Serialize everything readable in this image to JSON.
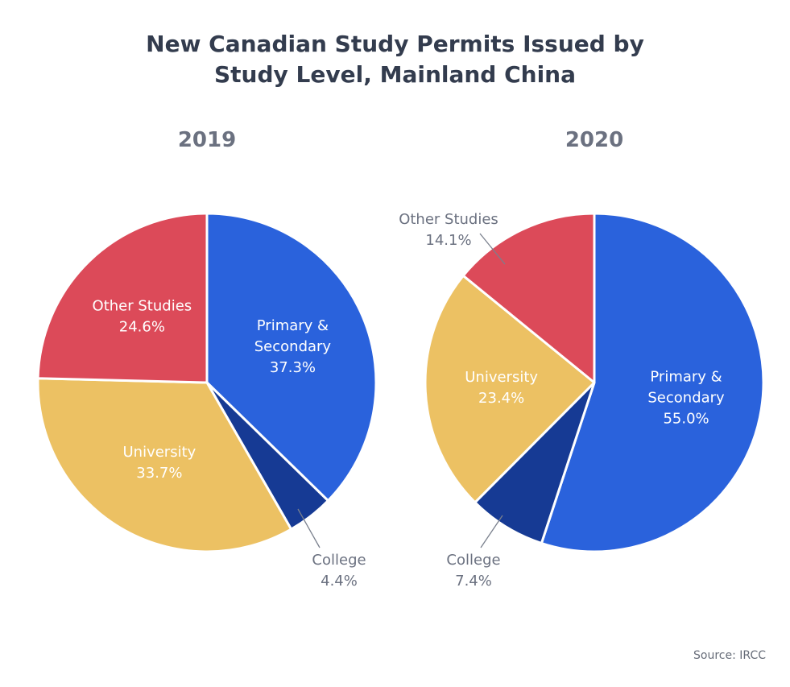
{
  "title_lines": [
    "New Canadian Study Permits Issued by",
    "Study Level, Mainland China"
  ],
  "source": "Source: IRCC",
  "colors": {
    "Primary & Secondary": "#2a62dc",
    "College": "#163a94",
    "University": "#ecc163",
    "Other Studies": "#dc4a59"
  },
  "chart_data": [
    {
      "type": "pie",
      "title": "2019",
      "slices": [
        {
          "label_lines": [
            "Primary &",
            "Secondary"
          ],
          "category": "Primary & Secondary",
          "value": 37.3,
          "value_text": "37.3%",
          "label_style": "inside"
        },
        {
          "label_lines": [
            "College"
          ],
          "category": "College",
          "value": 4.4,
          "value_text": "4.4%",
          "label_style": "callout"
        },
        {
          "label_lines": [
            "University"
          ],
          "category": "University",
          "value": 33.7,
          "value_text": "33.7%",
          "label_style": "inside"
        },
        {
          "label_lines": [
            "Other Studies"
          ],
          "category": "Other Studies",
          "value": 24.6,
          "value_text": "24.6%",
          "label_style": "inside"
        }
      ]
    },
    {
      "type": "pie",
      "title": "2020",
      "slices": [
        {
          "label_lines": [
            "Primary &",
            "Secondary"
          ],
          "category": "Primary & Secondary",
          "value": 55.0,
          "value_text": "55.0%",
          "label_style": "inside"
        },
        {
          "label_lines": [
            "College"
          ],
          "category": "College",
          "value": 7.4,
          "value_text": "7.4%",
          "label_style": "callout"
        },
        {
          "label_lines": [
            "University"
          ],
          "category": "University",
          "value": 23.4,
          "value_text": "23.4%",
          "label_style": "inside"
        },
        {
          "label_lines": [
            "Other Studies"
          ],
          "category": "Other Studies",
          "value": 14.1,
          "value_text": "14.1%",
          "label_style": "callout"
        }
      ]
    }
  ]
}
